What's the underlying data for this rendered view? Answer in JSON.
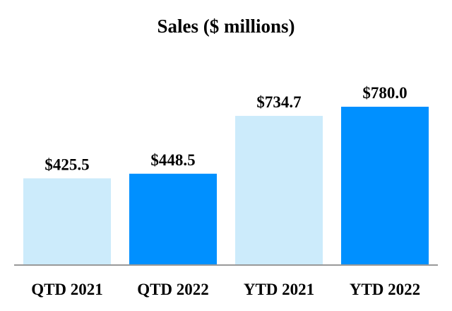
{
  "chart_data": {
    "type": "bar",
    "title": "Sales ($ millions)",
    "categories": [
      "QTD 2021",
      "QTD 2022",
      "YTD 2021",
      "YTD 2022"
    ],
    "values": [
      425.5,
      448.5,
      734.7,
      780.0
    ],
    "data_labels": [
      "$425.5",
      "$448.5",
      "$734.7",
      "$780.0"
    ],
    "bar_colors": [
      "#CCEBFB",
      "#0090FF",
      "#CCEBFB",
      "#0090FF"
    ],
    "axis_color": "#999999",
    "xlabel": "",
    "ylabel": "",
    "ylim": [
      0,
      780
    ],
    "grid": false
  }
}
